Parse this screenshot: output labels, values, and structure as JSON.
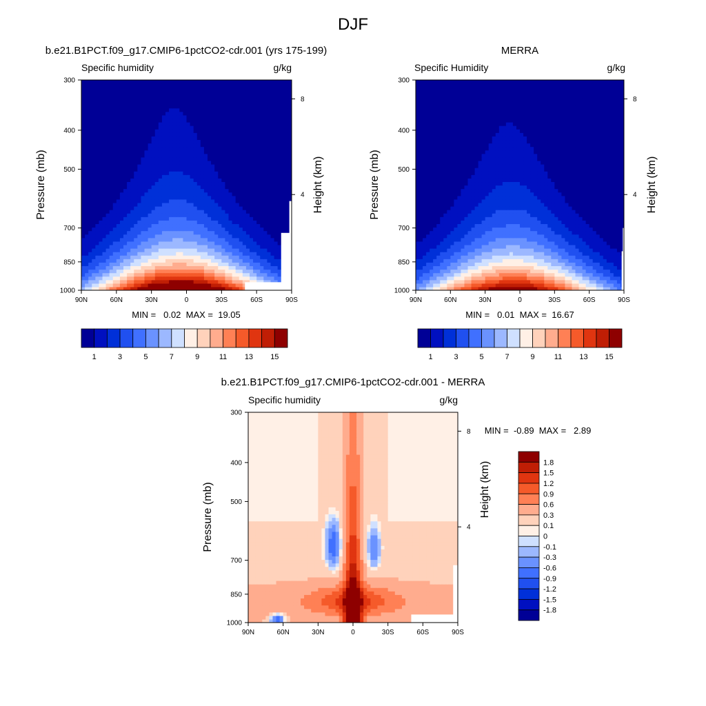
{
  "figure": {
    "title": "DJF",
    "pressure_ylabel": "Pressure (mb)",
    "height_ylabel": "Height (km)"
  },
  "colors": {
    "model_obs_scale": [
      "#000096",
      "#0010c0",
      "#0030d8",
      "#2050f0",
      "#4070ff",
      "#6a92ff",
      "#9cb8ff",
      "#cfe0ff",
      "#fff0e6",
      "#ffd2bb",
      "#ffac8e",
      "#ff8055",
      "#f55a2a",
      "#e03510",
      "#c01e05",
      "#8e0000"
    ],
    "diff_scale": [
      "#000096",
      "#0010c0",
      "#0030d8",
      "#2050f0",
      "#4070ff",
      "#6a92ff",
      "#9cb8ff",
      "#cfe0ff",
      "#fff0e6",
      "#ffd2bb",
      "#ffac8e",
      "#ff8055",
      "#f55a2a",
      "#e03510",
      "#c01e05",
      "#8e0000"
    ]
  },
  "chart_data": [
    {
      "type": "heatmap",
      "id": "model",
      "title": "b.e21.B1PCT.f09_g17.CMIP6-1pctCO2-cdr.001 (yrs 175-199)",
      "left_title": "Specific humidity",
      "units": "g/kg",
      "xlabel": "",
      "ylabel": "Pressure (mb)",
      "y2label": "Height (km)",
      "x_ticks": [
        "90N",
        "60N",
        "30N",
        "0",
        "30S",
        "60S",
        "90S"
      ],
      "x_tick_values": [
        90,
        60,
        30,
        0,
        -30,
        -60,
        -90
      ],
      "y_ticks": [
        300,
        400,
        500,
        700,
        850,
        1000
      ],
      "y2_ticks": [
        8,
        4
      ],
      "xlim": [
        90,
        -90
      ],
      "ylim": [
        1000,
        300
      ],
      "stats": "MIN =   0.02  MAX =  19.05",
      "min": 0.02,
      "max": 19.05,
      "peak": 19.05,
      "colorbar_levels": [
        0,
        1,
        2,
        3,
        4,
        5,
        6,
        7,
        8,
        9,
        10,
        11,
        12,
        13,
        14,
        15
      ],
      "colorbar_labels": [
        "1",
        "3",
        "5",
        "7",
        "9",
        "11",
        "13",
        "15"
      ]
    },
    {
      "type": "heatmap",
      "id": "obs",
      "title": "MERRA",
      "left_title": "Specific Humidity",
      "units": "g/kg",
      "xlabel": "",
      "ylabel": "Pressure (mb)",
      "y2label": "Height (km)",
      "x_ticks": [
        "90N",
        "60N",
        "30N",
        "0",
        "30S",
        "60S",
        "90S"
      ],
      "x_tick_values": [
        90,
        60,
        30,
        0,
        -30,
        -60,
        -90
      ],
      "y_ticks": [
        300,
        400,
        500,
        700,
        850,
        1000
      ],
      "y2_ticks": [
        8,
        4
      ],
      "xlim": [
        90,
        -90
      ],
      "ylim": [
        1000,
        300
      ],
      "stats": "MIN =   0.01  MAX =  16.67",
      "min": 0.01,
      "max": 16.67,
      "peak": 16.67,
      "colorbar_levels": [
        0,
        1,
        2,
        3,
        4,
        5,
        6,
        7,
        8,
        9,
        10,
        11,
        12,
        13,
        14,
        15
      ],
      "colorbar_labels": [
        "1",
        "3",
        "5",
        "7",
        "9",
        "11",
        "13",
        "15"
      ]
    },
    {
      "type": "heatmap",
      "id": "diff",
      "title": "b.e21.B1PCT.f09_g17.CMIP6-1pctCO2-cdr.001 - MERRA",
      "left_title": "Specific humidity",
      "units": "g/kg",
      "xlabel": "",
      "ylabel": "Pressure (mb)",
      "y2label": "Height (km)",
      "x_ticks": [
        "90N",
        "60N",
        "30N",
        "0",
        "30S",
        "60S",
        "90S"
      ],
      "x_tick_values": [
        90,
        60,
        30,
        0,
        -30,
        -60,
        -90
      ],
      "y_ticks": [
        300,
        400,
        500,
        700,
        850,
        1000
      ],
      "y2_ticks": [
        8,
        4
      ],
      "xlim": [
        90,
        -90
      ],
      "ylim": [
        1000,
        300
      ],
      "stats": "MIN =  -0.89  MAX =   2.89",
      "min": -0.89,
      "max": 2.89,
      "colorbar_labels": [
        "1.8",
        "1.5",
        "1.2",
        "0.9",
        "0.6",
        "0.3",
        "0.1",
        "0",
        "-0.1",
        "-0.3",
        "-0.6",
        "-0.9",
        "-1.2",
        "-1.5",
        "-1.8"
      ],
      "colorbar_levels": [
        -1.8,
        -1.5,
        -1.2,
        -0.9,
        -0.6,
        -0.3,
        -0.1,
        0,
        0.1,
        0.3,
        0.6,
        0.9,
        1.2,
        1.5,
        1.8
      ]
    }
  ]
}
